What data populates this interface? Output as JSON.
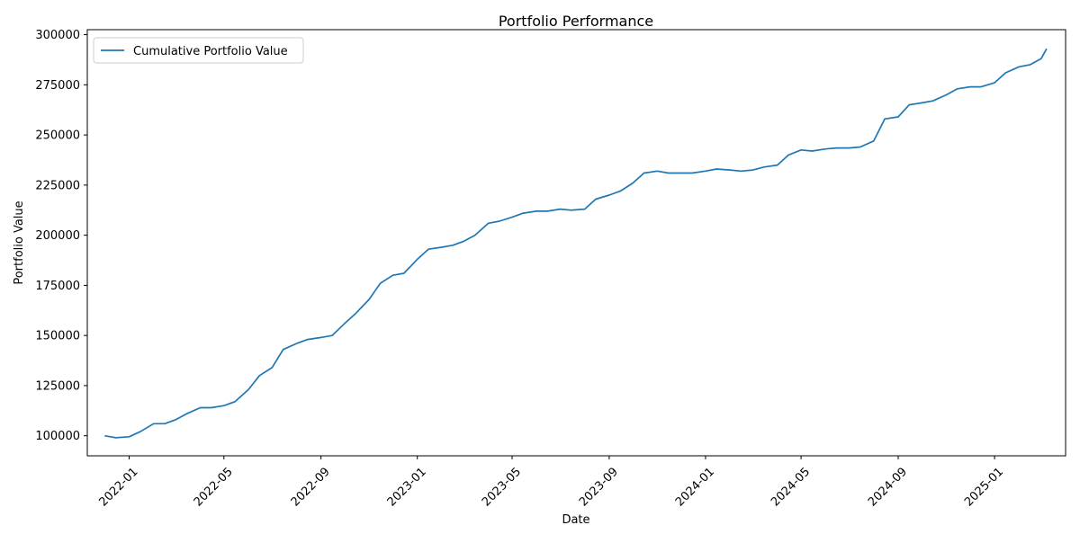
{
  "chart_data": {
    "type": "line",
    "title": "Portfolio Performance",
    "xlabel": "Date",
    "ylabel": "Portfolio Value",
    "x_axis_type": "date",
    "xlim": [
      "2021-11-09",
      "2025-04-01"
    ],
    "ylim": [
      90000,
      302500
    ],
    "x_ticks": [
      "2022-01-01",
      "2022-05-01",
      "2022-09-01",
      "2023-01-01",
      "2023-05-01",
      "2023-09-01",
      "2024-01-01",
      "2024-05-01",
      "2024-09-01",
      "2025-01-01"
    ],
    "x_tick_labels": [
      "2022-01",
      "2022-05",
      "2022-09",
      "2023-01",
      "2023-05",
      "2023-09",
      "2024-01",
      "2024-05",
      "2024-09",
      "2025-01"
    ],
    "y_ticks": [
      100000,
      125000,
      150000,
      175000,
      200000,
      225000,
      250000,
      275000,
      300000
    ],
    "y_tick_labels": [
      "100000",
      "125000",
      "150000",
      "175000",
      "200000",
      "225000",
      "250000",
      "275000",
      "300000"
    ],
    "grid": false,
    "legend": {
      "position": "top-left",
      "entries": [
        "Cumulative Portfolio Value"
      ]
    },
    "series": [
      {
        "name": "Cumulative Portfolio Value",
        "color": "#1f77b4",
        "x": [
          "2021-12-01",
          "2021-12-15",
          "2022-01-01",
          "2022-01-15",
          "2022-02-01",
          "2022-02-15",
          "2022-03-01",
          "2022-03-15",
          "2022-04-01",
          "2022-04-15",
          "2022-05-01",
          "2022-05-15",
          "2022-06-01",
          "2022-06-15",
          "2022-07-01",
          "2022-07-15",
          "2022-08-01",
          "2022-08-15",
          "2022-09-01",
          "2022-09-15",
          "2022-10-01",
          "2022-10-15",
          "2022-11-01",
          "2022-11-15",
          "2022-12-01",
          "2022-12-15",
          "2023-01-01",
          "2023-01-15",
          "2023-02-01",
          "2023-02-15",
          "2023-03-01",
          "2023-03-15",
          "2023-04-01",
          "2023-04-15",
          "2023-05-01",
          "2023-05-15",
          "2023-06-01",
          "2023-06-15",
          "2023-07-01",
          "2023-07-15",
          "2023-08-01",
          "2023-08-15",
          "2023-09-01",
          "2023-09-15",
          "2023-10-01",
          "2023-10-15",
          "2023-11-01",
          "2023-11-15",
          "2023-12-01",
          "2023-12-15",
          "2024-01-01",
          "2024-01-15",
          "2024-02-01",
          "2024-02-15",
          "2024-03-01",
          "2024-03-15",
          "2024-04-01",
          "2024-04-15",
          "2024-05-01",
          "2024-05-15",
          "2024-06-01",
          "2024-06-15",
          "2024-07-01",
          "2024-07-15",
          "2024-08-01",
          "2024-08-15",
          "2024-09-01",
          "2024-09-15",
          "2024-10-01",
          "2024-10-15",
          "2024-11-01",
          "2024-11-15",
          "2024-12-01",
          "2024-12-15",
          "2025-01-01",
          "2025-01-15",
          "2025-02-01",
          "2025-02-15",
          "2025-03-01",
          "2025-03-08"
        ],
        "values": [
          100000,
          99000,
          99500,
          102000,
          106000,
          106000,
          108000,
          111000,
          114000,
          114000,
          115000,
          117000,
          123000,
          130000,
          134000,
          143000,
          146000,
          148000,
          149000,
          150000,
          156000,
          161000,
          168000,
          176000,
          180000,
          181000,
          188000,
          193000,
          194000,
          195000,
          197000,
          200000,
          206000,
          207000,
          209000,
          211000,
          212000,
          212000,
          213000,
          212500,
          213000,
          218000,
          220000,
          222000,
          226000,
          231000,
          232000,
          231000,
          231000,
          231000,
          232000,
          233000,
          232500,
          232000,
          232500,
          234000,
          235000,
          240000,
          242500,
          242000,
          243000,
          243500,
          243500,
          244000,
          247000,
          258000,
          259000,
          265000,
          266000,
          267000,
          270000,
          273000,
          274000,
          274000,
          276000,
          281000,
          284000,
          285000,
          288000,
          293000
        ]
      }
    ]
  }
}
